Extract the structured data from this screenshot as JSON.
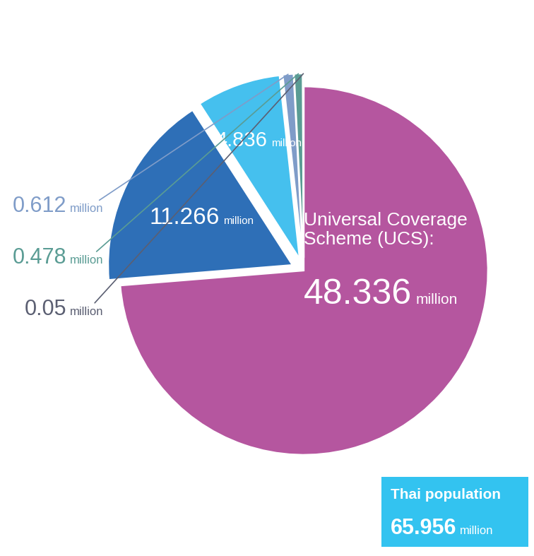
{
  "chart_data": {
    "type": "pie",
    "categories": [
      "Universal Coverage Scheme (UCS):",
      null,
      null,
      null,
      null,
      null
    ],
    "values": [
      48.336,
      11.266,
      4.836,
      0.612,
      0.478,
      0.05
    ],
    "colors": [
      "#b5569f",
      "#2e6fb7",
      "#45c0ee",
      "#7f9cc8",
      "#5a9c94",
      "#5b5f72"
    ],
    "unit": "million",
    "annotation": {
      "text": "Thai population",
      "value": 65.956
    }
  }
}
